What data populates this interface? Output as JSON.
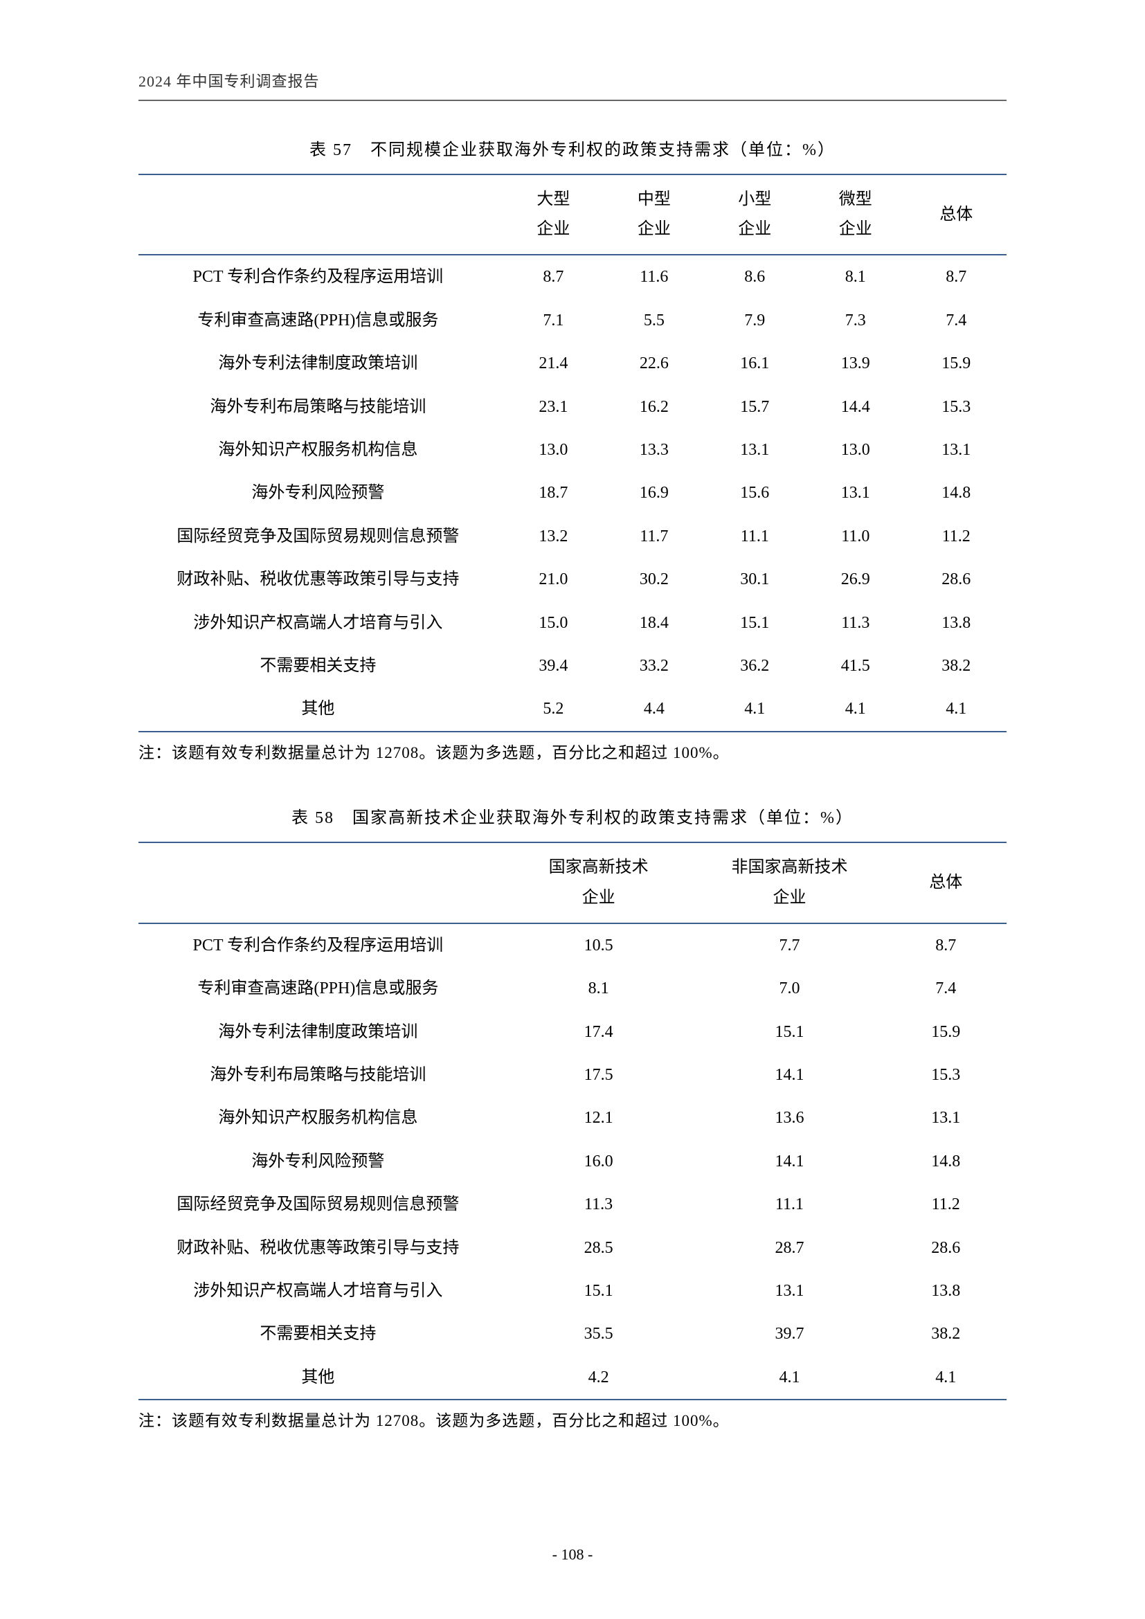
{
  "header": {
    "title": "2024 年中国专利调查报告"
  },
  "table57": {
    "type": "table",
    "title": "表 57　不同规模企业获取海外专利权的政策支持需求（单位：%）",
    "columns": [
      "大型\n企业",
      "中型\n企业",
      "小型\n企业",
      "微型\n企业",
      "总体"
    ],
    "header_cells": {
      "c1a": "大型",
      "c2a": "中型",
      "c3a": "小型",
      "c4a": "微型",
      "c1b": "企业",
      "c2b": "企业",
      "c3b": "企业",
      "c4b": "企业",
      "total": "总体"
    },
    "rows": [
      {
        "label": "PCT 专利合作条约及程序运用培训",
        "v": [
          "8.7",
          "11.6",
          "8.6",
          "8.1",
          "8.7"
        ]
      },
      {
        "label": "专利审查高速路(PPH)信息或服务",
        "v": [
          "7.1",
          "5.5",
          "7.9",
          "7.3",
          "7.4"
        ]
      },
      {
        "label": "海外专利法律制度政策培训",
        "v": [
          "21.4",
          "22.6",
          "16.1",
          "13.9",
          "15.9"
        ]
      },
      {
        "label": "海外专利布局策略与技能培训",
        "v": [
          "23.1",
          "16.2",
          "15.7",
          "14.4",
          "15.3"
        ]
      },
      {
        "label": "海外知识产权服务机构信息",
        "v": [
          "13.0",
          "13.3",
          "13.1",
          "13.0",
          "13.1"
        ]
      },
      {
        "label": "海外专利风险预警",
        "v": [
          "18.7",
          "16.9",
          "15.6",
          "13.1",
          "14.8"
        ]
      },
      {
        "label": "国际经贸竞争及国际贸易规则信息预警",
        "v": [
          "13.2",
          "11.7",
          "11.1",
          "11.0",
          "11.2"
        ]
      },
      {
        "label": "财政补贴、税收优惠等政策引导与支持",
        "v": [
          "21.0",
          "30.2",
          "30.1",
          "26.9",
          "28.6"
        ]
      },
      {
        "label": "涉外知识产权高端人才培育与引入",
        "v": [
          "15.0",
          "18.4",
          "15.1",
          "11.3",
          "13.8"
        ]
      },
      {
        "label": "不需要相关支持",
        "v": [
          "39.4",
          "33.2",
          "36.2",
          "41.5",
          "38.2"
        ]
      },
      {
        "label": "其他",
        "v": [
          "5.2",
          "4.4",
          "4.1",
          "4.1",
          "4.1"
        ]
      }
    ],
    "note": "注：该题有效专利数据量总计为 12708。该题为多选题，百分比之和超过 100%。",
    "colors": {
      "border": "#3a5f8f",
      "text": "#000000",
      "background": "#ffffff"
    },
    "column_alignment": [
      "center",
      "center",
      "center",
      "center",
      "center",
      "center"
    ],
    "font_size_pt": 12
  },
  "table58": {
    "type": "table",
    "title": "表 58　国家高新技术企业获取海外专利权的政策支持需求（单位：%）",
    "header_cells": {
      "c1a": "国家高新技术",
      "c2a": "非国家高新技术",
      "c1b": "企业",
      "c2b": "企业",
      "total": "总体"
    },
    "rows": [
      {
        "label": "PCT 专利合作条约及程序运用培训",
        "v": [
          "10.5",
          "7.7",
          "8.7"
        ]
      },
      {
        "label": "专利审查高速路(PPH)信息或服务",
        "v": [
          "8.1",
          "7.0",
          "7.4"
        ]
      },
      {
        "label": "海外专利法律制度政策培训",
        "v": [
          "17.4",
          "15.1",
          "15.9"
        ]
      },
      {
        "label": "海外专利布局策略与技能培训",
        "v": [
          "17.5",
          "14.1",
          "15.3"
        ]
      },
      {
        "label": "海外知识产权服务机构信息",
        "v": [
          "12.1",
          "13.6",
          "13.1"
        ]
      },
      {
        "label": "海外专利风险预警",
        "v": [
          "16.0",
          "14.1",
          "14.8"
        ]
      },
      {
        "label": "国际经贸竞争及国际贸易规则信息预警",
        "v": [
          "11.3",
          "11.1",
          "11.2"
        ]
      },
      {
        "label": "财政补贴、税收优惠等政策引导与支持",
        "v": [
          "28.5",
          "28.7",
          "28.6"
        ]
      },
      {
        "label": "涉外知识产权高端人才培育与引入",
        "v": [
          "15.1",
          "13.1",
          "13.8"
        ]
      },
      {
        "label": "不需要相关支持",
        "v": [
          "35.5",
          "39.7",
          "38.2"
        ]
      },
      {
        "label": "其他",
        "v": [
          "4.2",
          "4.1",
          "4.1"
        ]
      }
    ],
    "note": "注：该题有效专利数据量总计为 12708。该题为多选题，百分比之和超过 100%。",
    "colors": {
      "border": "#3a5f8f",
      "text": "#000000",
      "background": "#ffffff"
    },
    "column_alignment": [
      "center",
      "center",
      "center",
      "center"
    ],
    "font_size_pt": 12
  },
  "footer": {
    "page_number": "- 108 -"
  }
}
